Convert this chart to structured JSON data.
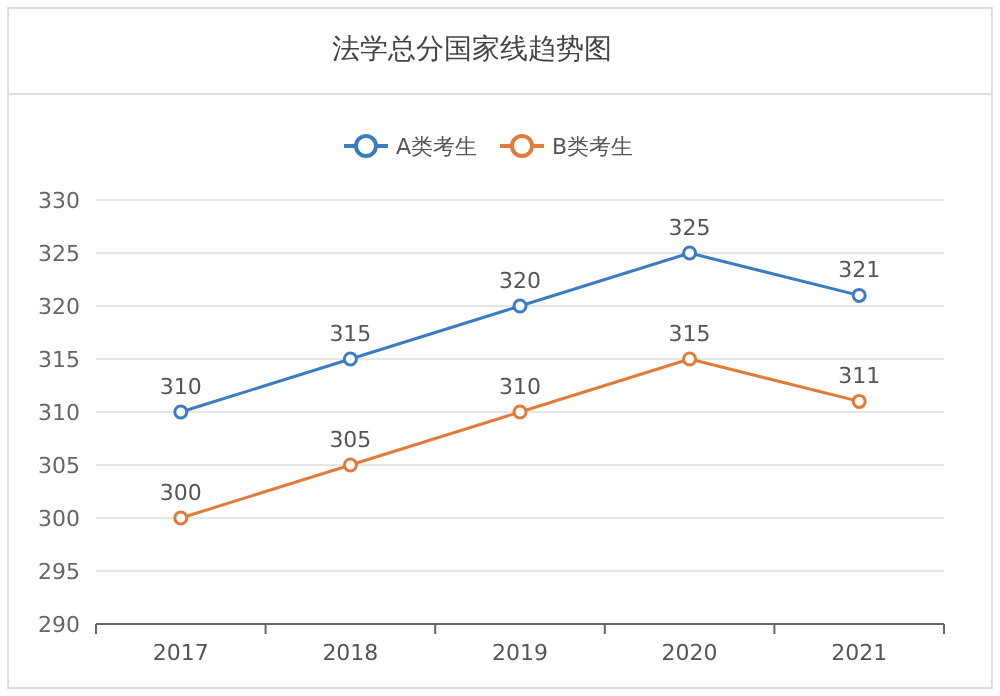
{
  "chart_data": {
    "type": "line",
    "title": "法学总分国家线趋势图",
    "categories": [
      "2017",
      "2018",
      "2019",
      "2020",
      "2021"
    ],
    "series": [
      {
        "name": "A类考生",
        "color": "#3b7dc0",
        "values": [
          310,
          315,
          320,
          325,
          321
        ]
      },
      {
        "name": "B类考生",
        "color": "#e07b39",
        "values": [
          300,
          305,
          310,
          315,
          311
        ]
      }
    ],
    "ylim": [
      290,
      330
    ],
    "yticks": [
      290,
      295,
      300,
      305,
      310,
      315,
      320,
      325,
      330
    ],
    "grid": "y",
    "legend": "top",
    "marker": "circle",
    "line_style": "solid",
    "data_labels": true
  }
}
